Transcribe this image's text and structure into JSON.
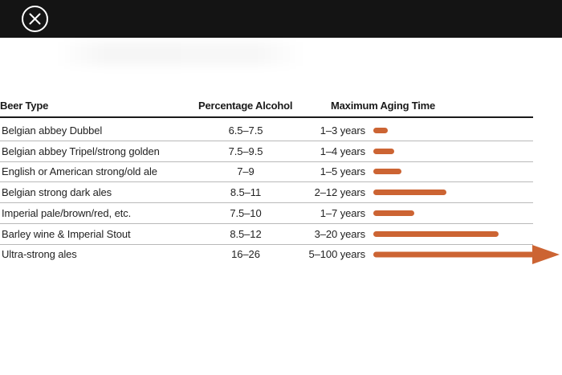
{
  "toolbar": {
    "close_icon": "close-icon"
  },
  "table": {
    "headers": {
      "type": "Beer Type",
      "alcohol": "Percentage Alcohol",
      "aging": "Maximum Aging Time"
    },
    "bar_color": "#cc6433",
    "rows": [
      {
        "type": "Belgian abbey Dubbel",
        "alcohol": "6.5–7.5",
        "aging": "1–3 years",
        "max_years": 3
      },
      {
        "type": "Belgian abbey Tripel/strong golden",
        "alcohol": "7.5–9.5",
        "aging": "1–4 years",
        "max_years": 4
      },
      {
        "type": "English or American strong/old ale",
        "alcohol": "7–9",
        "aging": "1–5 years",
        "max_years": 5
      },
      {
        "type": "Belgian strong dark ales",
        "alcohol": "8.5–11",
        "aging": "2–12 years",
        "max_years": 12
      },
      {
        "type": "Imperial pale/brown/red, etc.",
        "alcohol": "7.5–10",
        "aging": "1–7 years",
        "max_years": 7
      },
      {
        "type": "Barley wine & Imperial Stout",
        "alcohol": "8.5–12",
        "aging": "3–20 years",
        "max_years": 20
      },
      {
        "type": "Ultra-strong ales",
        "alcohol": "16–26",
        "aging": "5–100 years",
        "max_years": 100,
        "open_ended": true
      }
    ]
  }
}
